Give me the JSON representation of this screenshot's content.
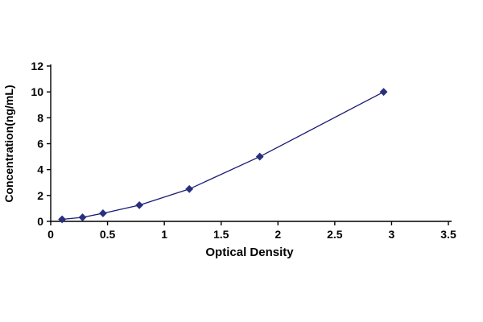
{
  "chart_data": {
    "type": "line",
    "title": "",
    "xlabel": "Optical Density",
    "ylabel": "Concentration(ng/mL)",
    "x": [
      0.1,
      0.28,
      0.46,
      0.78,
      1.22,
      1.84,
      2.93
    ],
    "y": [
      0.156,
      0.312,
      0.625,
      1.25,
      2.5,
      5,
      10
    ],
    "xlim": [
      0,
      3.5
    ],
    "ylim": [
      0,
      12
    ],
    "xticks": [
      0,
      0.5,
      1,
      1.5,
      2,
      2.5,
      3,
      3.5
    ],
    "yticks": [
      0,
      2,
      4,
      6,
      8,
      10,
      12
    ],
    "grid": false,
    "legend": null,
    "marker": "diamond",
    "colors": {
      "line": "#1b1b75",
      "marker": "#28307e",
      "axis": "#000000",
      "tick_label": "#000000"
    }
  }
}
